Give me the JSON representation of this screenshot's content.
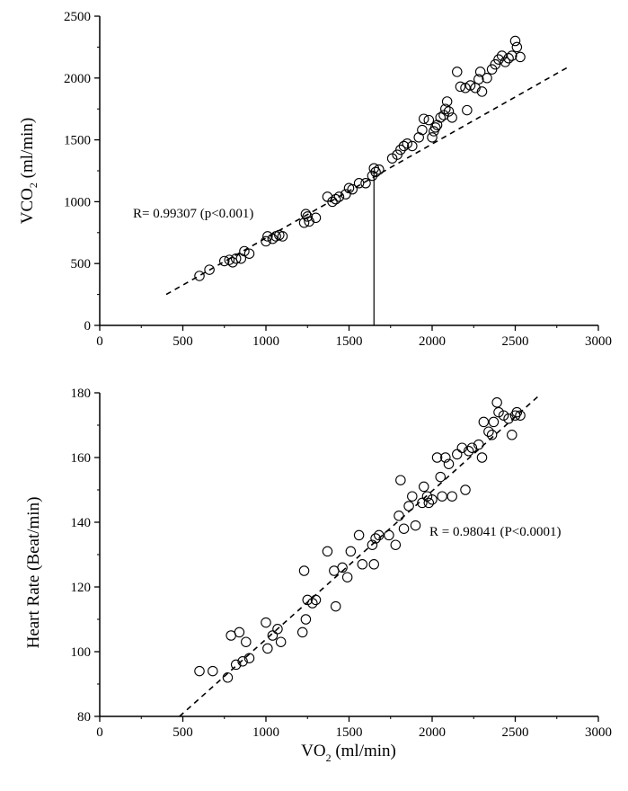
{
  "chart_data": [
    {
      "type": "scatter",
      "title": "",
      "xlabel": "",
      "ylabel": {
        "main": "VCO",
        "sub": "2",
        "unit": " (ml/min)"
      },
      "xlim": [
        0,
        3000
      ],
      "ylim": [
        0,
        2500
      ],
      "x_ticks": [
        "0",
        "500",
        "1000",
        "1500",
        "2000",
        "2500",
        "3000"
      ],
      "y_ticks": [
        "0",
        "500",
        "1000",
        "1500",
        "2000",
        "2500"
      ],
      "annotation": "R= 0.99307 (p<0.001)",
      "trendline": {
        "x": [
          400,
          2820
        ],
        "y": [
          250,
          2090
        ],
        "style": "dashed"
      },
      "marker_line": {
        "x": 1650,
        "y_from": 0,
        "y_to": 1250
      },
      "series": [
        {
          "marker": "open-circle",
          "points": [
            [
              600,
              400
            ],
            [
              660,
              450
            ],
            [
              750,
              520
            ],
            [
              780,
              530
            ],
            [
              800,
              510
            ],
            [
              820,
              540
            ],
            [
              850,
              540
            ],
            [
              870,
              600
            ],
            [
              900,
              580
            ],
            [
              1000,
              680
            ],
            [
              1010,
              720
            ],
            [
              1040,
              700
            ],
            [
              1060,
              720
            ],
            [
              1080,
              730
            ],
            [
              1100,
              720
            ],
            [
              1230,
              830
            ],
            [
              1240,
              900
            ],
            [
              1250,
              880
            ],
            [
              1260,
              840
            ],
            [
              1300,
              870
            ],
            [
              1370,
              1040
            ],
            [
              1400,
              1000
            ],
            [
              1420,
              1020
            ],
            [
              1440,
              1040
            ],
            [
              1480,
              1060
            ],
            [
              1500,
              1110
            ],
            [
              1520,
              1100
            ],
            [
              1560,
              1150
            ],
            [
              1600,
              1150
            ],
            [
              1640,
              1210
            ],
            [
              1650,
              1270
            ],
            [
              1660,
              1240
            ],
            [
              1680,
              1260
            ],
            [
              1760,
              1350
            ],
            [
              1790,
              1380
            ],
            [
              1810,
              1420
            ],
            [
              1830,
              1450
            ],
            [
              1850,
              1470
            ],
            [
              1880,
              1450
            ],
            [
              1920,
              1520
            ],
            [
              1940,
              1580
            ],
            [
              1950,
              1670
            ],
            [
              1980,
              1660
            ],
            [
              2000,
              1520
            ],
            [
              2010,
              1570
            ],
            [
              2020,
              1600
            ],
            [
              2030,
              1620
            ],
            [
              2050,
              1680
            ],
            [
              2070,
              1700
            ],
            [
              2080,
              1750
            ],
            [
              2090,
              1810
            ],
            [
              2100,
              1730
            ],
            [
              2120,
              1680
            ],
            [
              2150,
              2050
            ],
            [
              2170,
              1930
            ],
            [
              2200,
              1920
            ],
            [
              2210,
              1740
            ],
            [
              2230,
              1940
            ],
            [
              2260,
              1920
            ],
            [
              2280,
              1990
            ],
            [
              2290,
              2050
            ],
            [
              2300,
              1890
            ],
            [
              2330,
              2000
            ],
            [
              2360,
              2070
            ],
            [
              2380,
              2110
            ],
            [
              2400,
              2150
            ],
            [
              2420,
              2180
            ],
            [
              2440,
              2130
            ],
            [
              2460,
              2160
            ],
            [
              2480,
              2180
            ],
            [
              2500,
              2300
            ],
            [
              2510,
              2250
            ],
            [
              2530,
              2170
            ]
          ]
        }
      ]
    },
    {
      "type": "scatter",
      "title": "",
      "xlabel": {
        "main": "VO",
        "sub": "2",
        "unit": " (ml/min)"
      },
      "ylabel": "Heart Rate (Beat/min)",
      "xlim": [
        0,
        3000
      ],
      "ylim": [
        80,
        180
      ],
      "x_ticks": [
        "0",
        "500",
        "1000",
        "1500",
        "2000",
        "2500",
        "3000"
      ],
      "y_ticks": [
        "80",
        "100",
        "120",
        "140",
        "160",
        "180"
      ],
      "annotation": "R = 0.98041 (P<0.0001)",
      "trendline": {
        "x": [
          480,
          2640
        ],
        "y": [
          80,
          179
        ],
        "style": "dashed"
      },
      "series": [
        {
          "marker": "open-circle",
          "points": [
            [
              600,
              94
            ],
            [
              680,
              94
            ],
            [
              770,
              92
            ],
            [
              790,
              105
            ],
            [
              820,
              96
            ],
            [
              840,
              106
            ],
            [
              860,
              97
            ],
            [
              880,
              103
            ],
            [
              900,
              98
            ],
            [
              1000,
              109
            ],
            [
              1010,
              101
            ],
            [
              1040,
              105
            ],
            [
              1070,
              107
            ],
            [
              1090,
              103
            ],
            [
              1220,
              106
            ],
            [
              1230,
              125
            ],
            [
              1240,
              110
            ],
            [
              1250,
              116
            ],
            [
              1280,
              115
            ],
            [
              1300,
              116
            ],
            [
              1370,
              131
            ],
            [
              1410,
              125
            ],
            [
              1420,
              114
            ],
            [
              1460,
              126
            ],
            [
              1490,
              123
            ],
            [
              1510,
              131
            ],
            [
              1560,
              136
            ],
            [
              1580,
              127
            ],
            [
              1640,
              133
            ],
            [
              1650,
              127
            ],
            [
              1660,
              135
            ],
            [
              1680,
              136
            ],
            [
              1740,
              136
            ],
            [
              1780,
              133
            ],
            [
              1800,
              142
            ],
            [
              1810,
              153
            ],
            [
              1830,
              138
            ],
            [
              1860,
              145
            ],
            [
              1880,
              148
            ],
            [
              1900,
              139
            ],
            [
              1940,
              146
            ],
            [
              1950,
              151
            ],
            [
              1970,
              148
            ],
            [
              1980,
              146
            ],
            [
              2000,
              147
            ],
            [
              2030,
              160
            ],
            [
              2050,
              154
            ],
            [
              2060,
              148
            ],
            [
              2080,
              160
            ],
            [
              2100,
              158
            ],
            [
              2120,
              148
            ],
            [
              2150,
              161
            ],
            [
              2180,
              163
            ],
            [
              2200,
              150
            ],
            [
              2220,
              162
            ],
            [
              2240,
              163
            ],
            [
              2280,
              164
            ],
            [
              2300,
              160
            ],
            [
              2310,
              171
            ],
            [
              2340,
              168
            ],
            [
              2360,
              167
            ],
            [
              2370,
              171
            ],
            [
              2390,
              177
            ],
            [
              2400,
              174
            ],
            [
              2430,
              173
            ],
            [
              2460,
              172
            ],
            [
              2480,
              167
            ],
            [
              2500,
              173
            ],
            [
              2510,
              174
            ],
            [
              2530,
              173
            ]
          ]
        }
      ]
    }
  ]
}
